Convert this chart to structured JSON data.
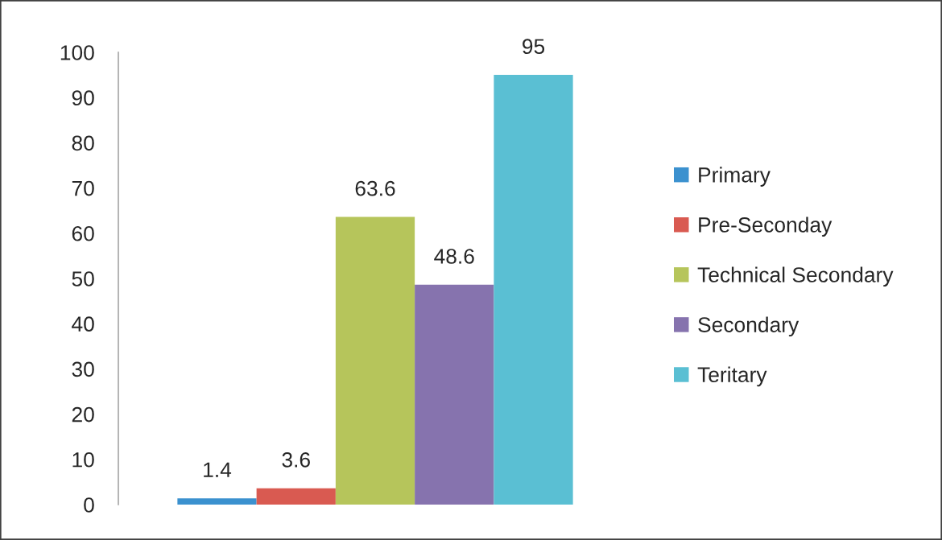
{
  "chart_data": {
    "type": "bar",
    "categories": [
      null
    ],
    "series": [
      {
        "name": "Primary",
        "color": "#3b91cf",
        "values": [
          1.4
        ]
      },
      {
        "name": "Pre-Seconday",
        "color": "#d95a51",
        "values": [
          3.6
        ]
      },
      {
        "name": "Technical Secondary",
        "color": "#b6c55b",
        "values": [
          63.6
        ]
      },
      {
        "name": "Secondary",
        "color": "#8673ae",
        "values": [
          48.6
        ]
      },
      {
        "name": "Teritary",
        "color": "#5abfd3",
        "values": [
          95
        ]
      }
    ],
    "ylim": [
      0,
      100
    ],
    "yticks": [
      0,
      10,
      20,
      30,
      40,
      50,
      60,
      70,
      80,
      90,
      100
    ],
    "data_labels": true,
    "legend": "right",
    "grid": false,
    "tick_labels": "y"
  }
}
